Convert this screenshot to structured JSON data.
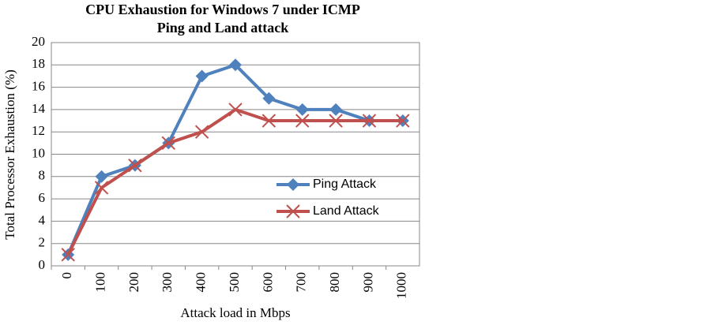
{
  "chart_data": {
    "type": "line",
    "title": [
      "CPU Exhaustion for Windows 7  under ICMP",
      "Ping and Land attack"
    ],
    "x_label": "Attack load in Mbps",
    "y_label": "Total Processor Exhaustion (%)",
    "categories": [
      "0",
      "100",
      "200",
      "300",
      "400",
      "500",
      "600",
      "700",
      "800",
      "900",
      "1000"
    ],
    "series": [
      {
        "name": "Ping Attack",
        "color": "#4f81bd",
        "marker": "diamond",
        "values": [
          1,
          8,
          9,
          11,
          17,
          18,
          15,
          14,
          14,
          13,
          13
        ]
      },
      {
        "name": "Land Attack",
        "color": "#c0504d",
        "marker": "x",
        "values": [
          1,
          7,
          9,
          11,
          12,
          14,
          13,
          13,
          13,
          13,
          13
        ]
      }
    ],
    "ylim": [
      0,
      20
    ],
    "yticks": [
      0,
      2,
      4,
      6,
      8,
      10,
      12,
      14,
      16,
      18,
      20
    ],
    "grid": true
  }
}
